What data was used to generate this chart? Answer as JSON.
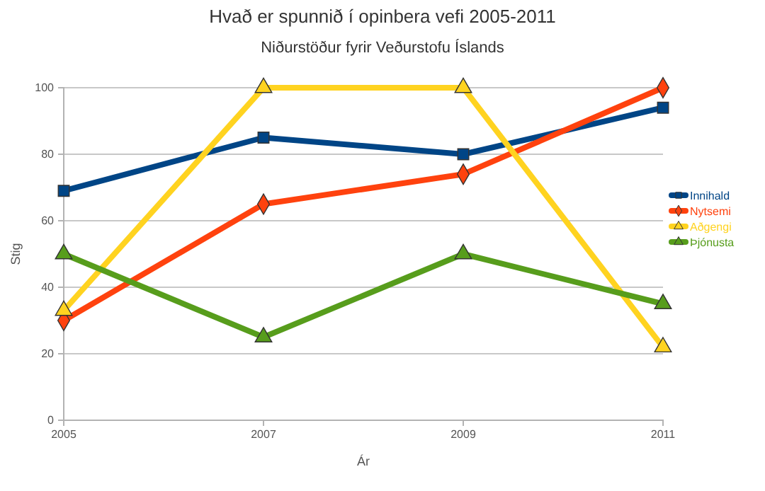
{
  "chart_data": {
    "type": "line",
    "title": "Hvað er spunnið í opinbera vefi 2005-2011",
    "subtitle": "Niðurstöður fyrir Veðurstofu Íslands",
    "xlabel": "Ár",
    "ylabel": "Stig",
    "categories": [
      "2005",
      "2007",
      "2009",
      "2011"
    ],
    "series": [
      {
        "name": "Innihald",
        "color": "#004586",
        "marker": "square",
        "values": [
          69,
          85,
          80,
          94
        ]
      },
      {
        "name": "Nytsemi",
        "color": "#ff420e",
        "marker": "diamond",
        "values": [
          30,
          65,
          74,
          100
        ]
      },
      {
        "name": "Aðgengi",
        "color": "#ffd320",
        "marker": "triangle",
        "values": [
          33,
          100,
          100,
          22
        ]
      },
      {
        "name": "Þjónusta",
        "color": "#579d1c",
        "marker": "triangle",
        "values": [
          50,
          25,
          50,
          35
        ]
      }
    ],
    "ylim": [
      0,
      100
    ],
    "yticks": [
      0,
      20,
      40,
      60,
      80,
      100
    ],
    "grid": "y",
    "legend": "right",
    "line_style": "solid"
  }
}
